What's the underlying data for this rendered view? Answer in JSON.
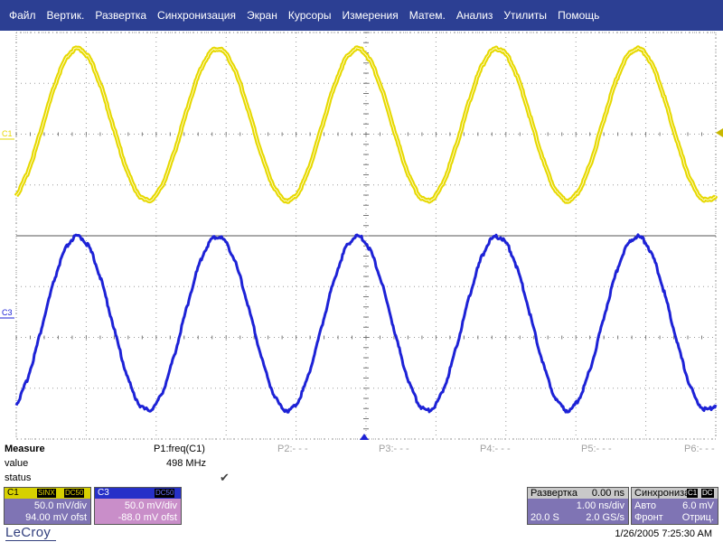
{
  "menu": [
    "Файл",
    "Вертик.",
    "Развертка",
    "Синхронизация",
    "Экран",
    "Курсоры",
    "Измерения",
    "Матем.",
    "Анализ",
    "Утилиты",
    "Помощь"
  ],
  "traces": {
    "c1": {
      "label": "C1",
      "color": "#e6d800"
    },
    "c3": {
      "label": "C3",
      "color": "#1d22d6"
    }
  },
  "measure": {
    "title": "Measure",
    "row_value": "value",
    "row_status": "status",
    "p1_name": "P1:freq(C1)",
    "p1_value": "498 MHz",
    "p1_status_icon": "checkmark-icon",
    "p2": "P2:- - -",
    "p3": "P3:- - -",
    "p4": "P4:- - -",
    "p5": "P5:- - -",
    "p6": "P6:- - -"
  },
  "channel1": {
    "name": "C1",
    "badge1": "SINX",
    "badge2": "DC50",
    "vdiv": "50.0 mV/div",
    "offset": "94.00 mV ofst",
    "header_color": "#d7d100",
    "body_color": "#7f74b4"
  },
  "channel3": {
    "name": "C3",
    "badge": "DC50",
    "vdiv": "50.0 mV/div",
    "offset": "-88.0 mV ofst",
    "header_color": "#2630c8",
    "body_color": "#c98ec9"
  },
  "timebase": {
    "title": "Развертка",
    "delay": "0.00 ns",
    "tdiv": "1.00 ns/div",
    "samples": "20.0 S",
    "rate": "2.0 GS/s"
  },
  "trigger": {
    "title": "Синхрониза",
    "badge1": "C1",
    "badge2": "DC",
    "mode": "Авто",
    "level": "6.0 mV",
    "slope_label": "Фронт",
    "slope": "Отриц."
  },
  "brand": "LeCroy",
  "datetime": "1/26/2005 7:25:30 AM",
  "waves": {
    "c1": {
      "periods": 5,
      "phase": 0.0
    },
    "c3": {
      "periods": 5,
      "phase": 0.0
    }
  }
}
